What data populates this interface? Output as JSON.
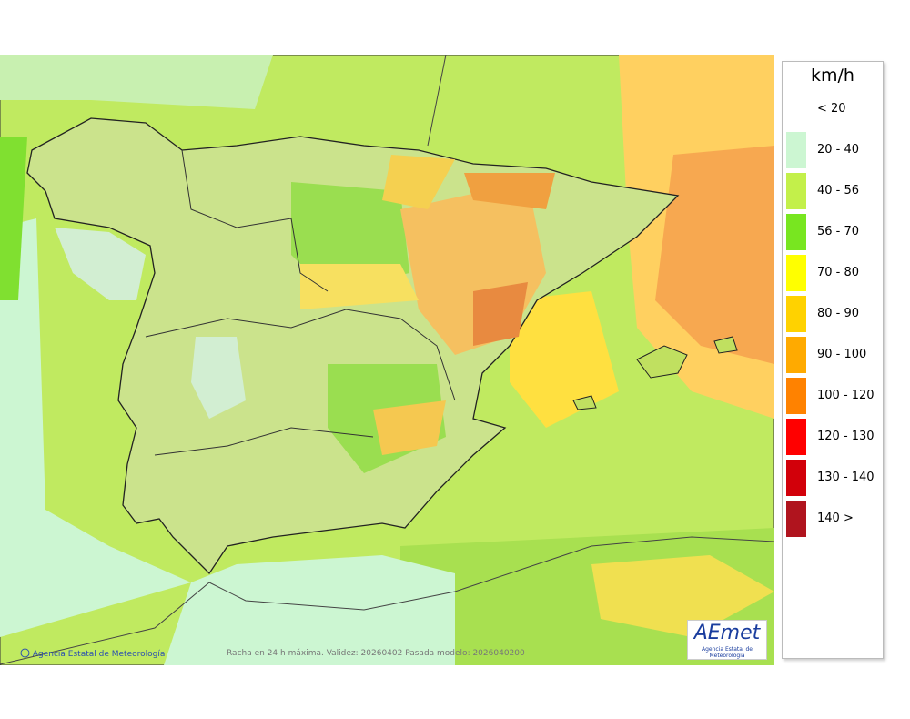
{
  "legend": {
    "unit": "km/h",
    "items": [
      {
        "label": "< 20"
      },
      {
        "label": "20 - 40",
        "color": "#ccf6d2"
      },
      {
        "label": "40 - 56",
        "color": "#c3f04a"
      },
      {
        "label": "56 - 70",
        "color": "#78e620"
      },
      {
        "label": "70 - 80",
        "color": "#ffff00"
      },
      {
        "label": "80 - 90",
        "color": "#ffd200"
      },
      {
        "label": "90 - 100",
        "color": "#ffaa00"
      },
      {
        "label": "100 - 120",
        "color": "#ff8200"
      },
      {
        "label": "120 - 130",
        "color": "#ff0000"
      },
      {
        "label": "130 - 140",
        "color": "#d2000a"
      },
      {
        "label": "140 >",
        "color": "#b0141e"
      }
    ]
  },
  "footer": {
    "credit": "Agencia Estatal de Meteorología",
    "caption": "Racha en 24 h máxima. Validez: 20260402 Pasada modelo: 2026040200"
  },
  "logo": {
    "name": "AEmet",
    "subtitle": "Agencia Estatal de Meteorología"
  }
}
